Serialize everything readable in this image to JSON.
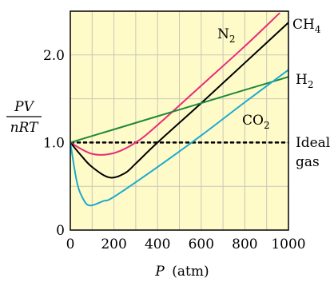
{
  "chart_data": {
    "type": "line",
    "title": "",
    "xlabel": {
      "symbol": "P",
      "unit": "(atm)"
    },
    "ylabel": {
      "numerator": "PV",
      "denominator": "nRT"
    },
    "xlim": [
      0,
      1000
    ],
    "ylim": [
      0,
      2.5
    ],
    "x_ticks": [
      "0",
      "200",
      "400",
      "600",
      "800",
      "1000"
    ],
    "y_ticks": [
      "0",
      "1.0",
      "2.0"
    ],
    "grid": true,
    "background": "#fffbc8",
    "grid_color": "#c9c7b8",
    "series": [
      {
        "id": "N2",
        "name_main": "N",
        "name_sub": "2",
        "color": "#ec2a78",
        "x": [
          0,
          100,
          200,
          300,
          400,
          600,
          800,
          960
        ],
        "y": [
          1.0,
          0.87,
          0.88,
          1.0,
          1.2,
          1.65,
          2.1,
          2.48
        ]
      },
      {
        "id": "CH4",
        "name_main": "CH",
        "name_sub": "4",
        "color": "#000000",
        "x": [
          0,
          50,
          100,
          180,
          250,
          300,
          400,
          600,
          800,
          1000
        ],
        "y": [
          1.0,
          0.85,
          0.72,
          0.6,
          0.65,
          0.76,
          1.0,
          1.45,
          1.91,
          2.37
        ]
      },
      {
        "id": "H2",
        "name_main": "H",
        "name_sub": "2",
        "color": "#1c8a3a",
        "x": [
          0,
          200,
          400,
          600,
          800,
          1000
        ],
        "y": [
          1.0,
          1.15,
          1.3,
          1.45,
          1.6,
          1.75
        ]
      },
      {
        "id": "CO2",
        "name_main": "CO",
        "name_sub": "2",
        "color": "#1ea9cf",
        "x": [
          0,
          30,
          60,
          90,
          150,
          200,
          400,
          600,
          800,
          1000
        ],
        "y": [
          1.0,
          0.55,
          0.35,
          0.28,
          0.33,
          0.38,
          0.72,
          1.08,
          1.46,
          1.83
        ]
      }
    ],
    "reference": {
      "y": 1.0,
      "color": "#000000",
      "label_line1": "Ideal",
      "label_line2": "gas"
    }
  }
}
